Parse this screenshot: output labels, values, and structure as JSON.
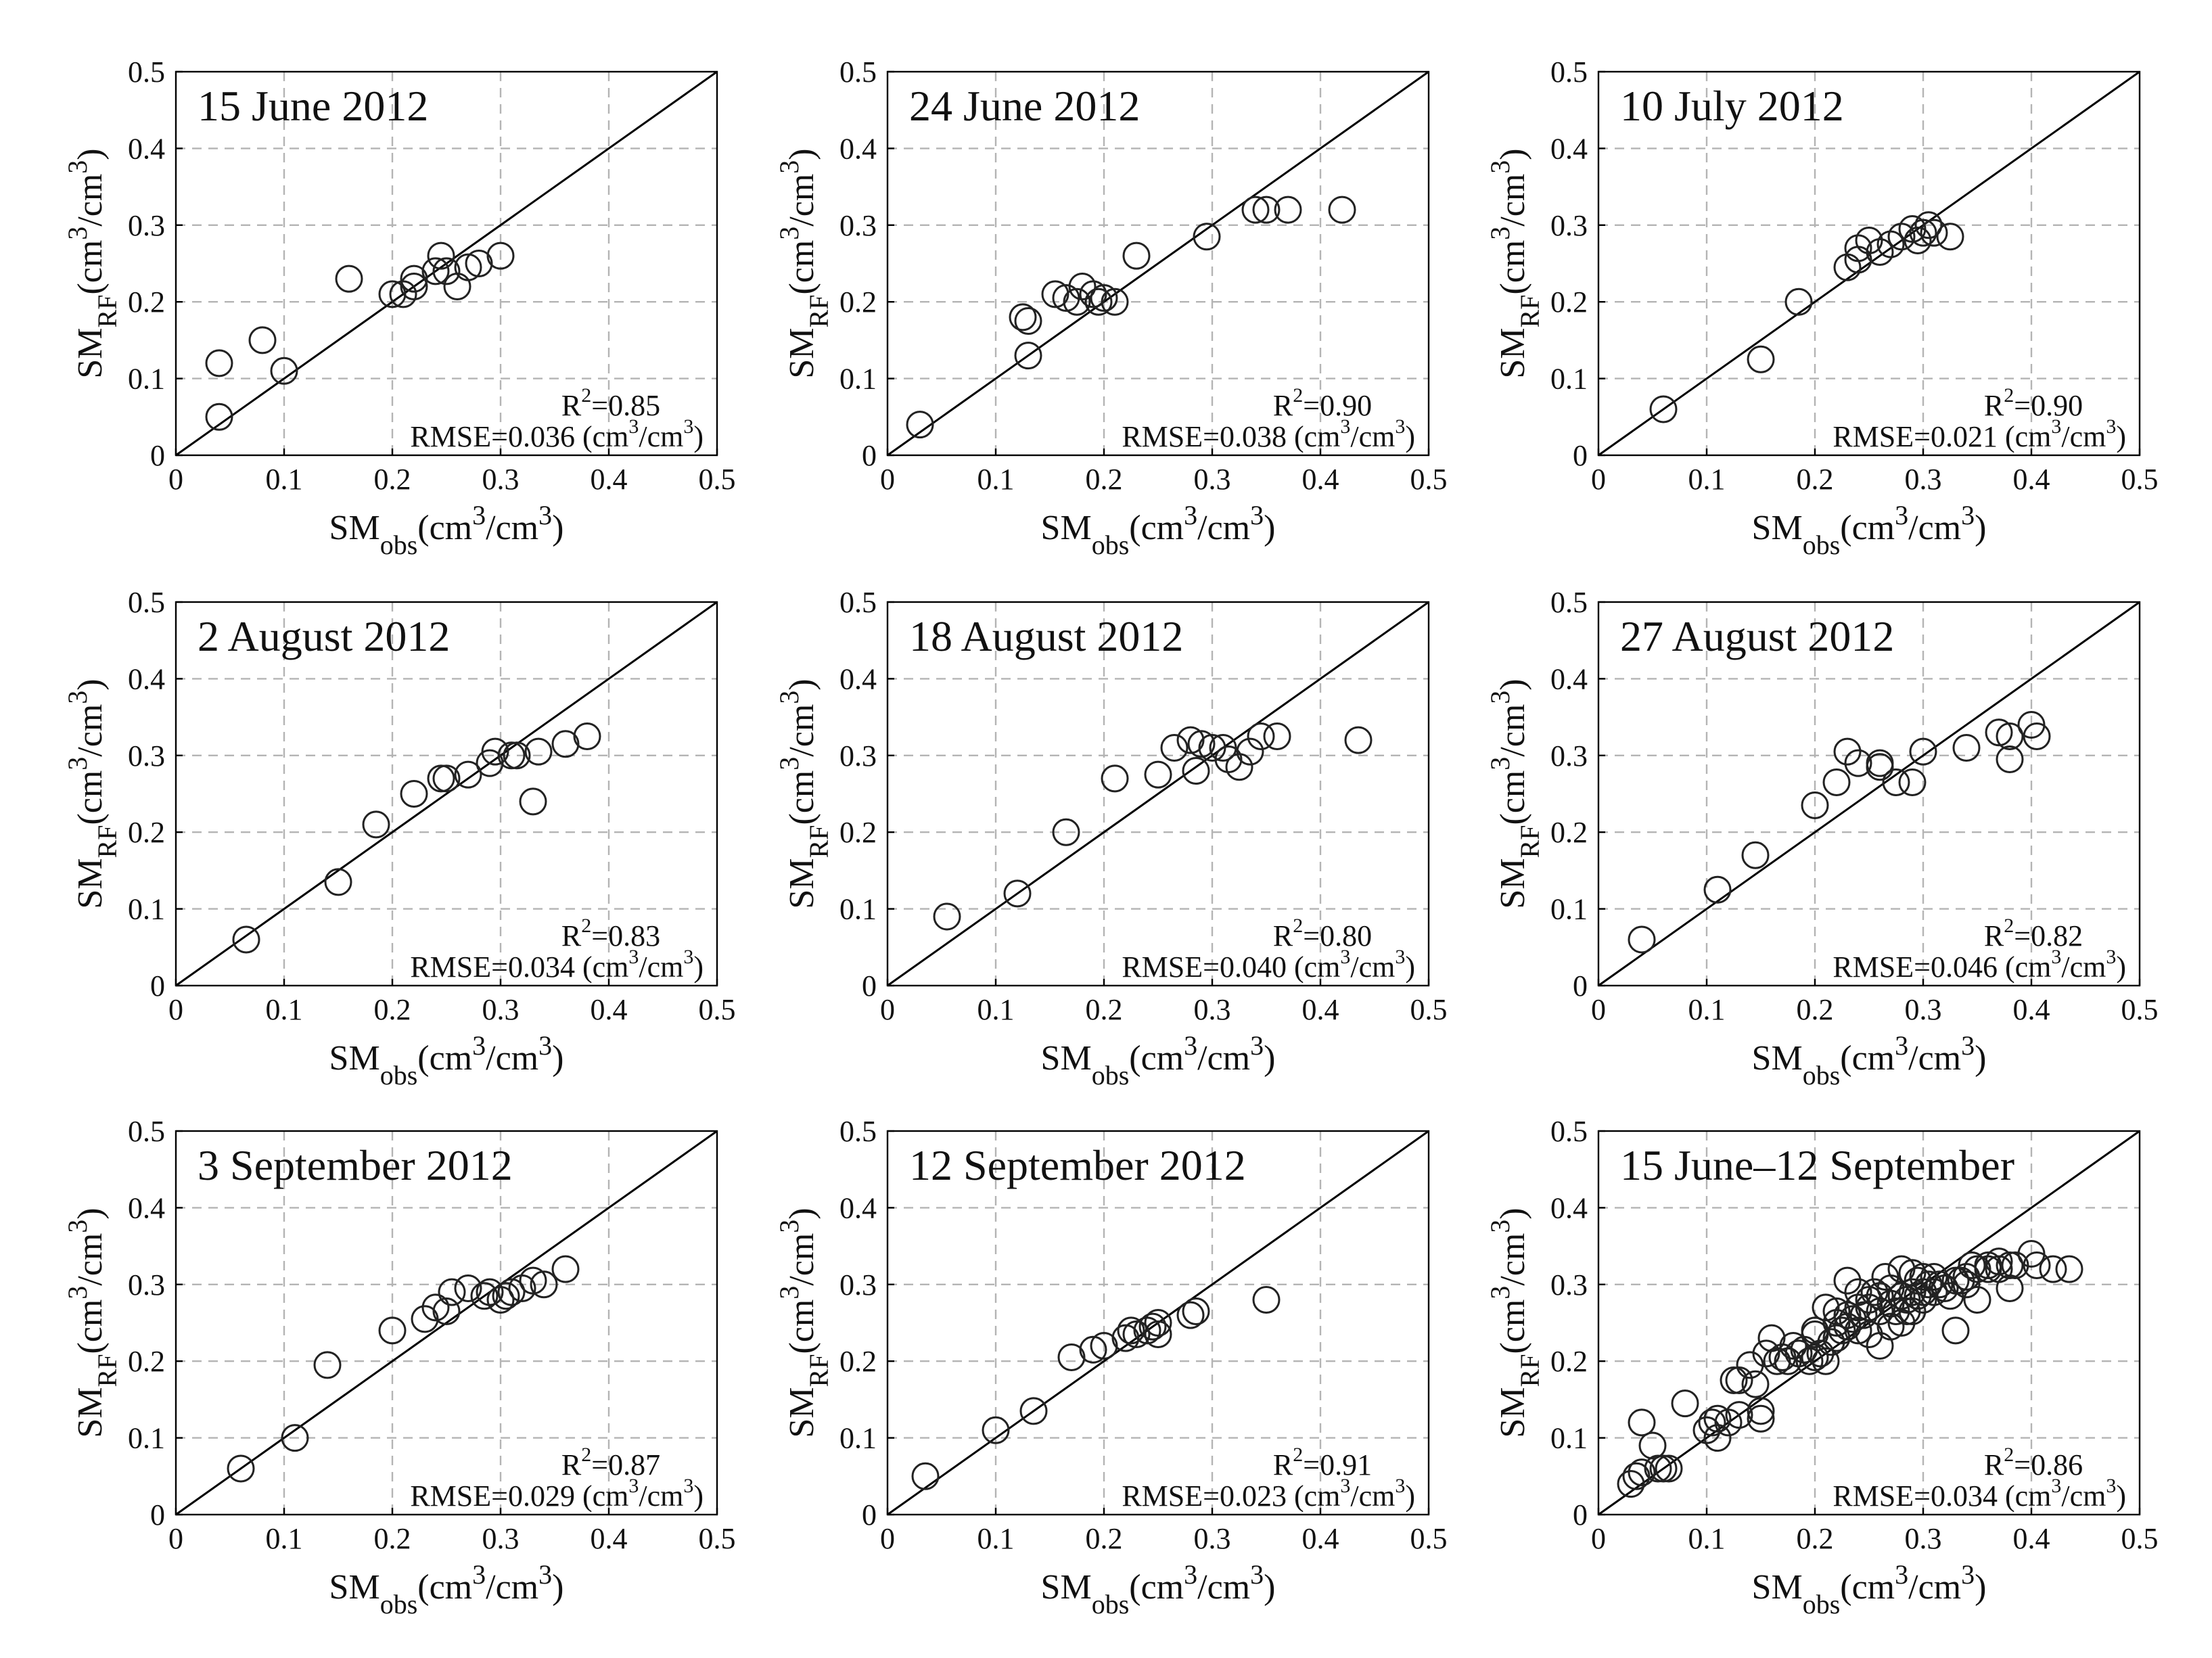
{
  "axis_labels": {
    "x": {
      "base": "SM",
      "sub": "obs",
      "pre": "(cm",
      "sup": "3",
      "post": "/cm",
      "sup2": "3",
      "close": ")"
    },
    "y": {
      "base": "SM",
      "sub": "RF",
      "pre": "(cm",
      "sup": "3",
      "post": "/cm",
      "sup2": "3",
      "close": ")"
    }
  },
  "ticks": [
    "0",
    "0.1",
    "0.2",
    "0.3",
    "0.4",
    "0.5"
  ],
  "chart_data": [
    {
      "type": "scatter",
      "title": "15 June 2012",
      "r2_prefix": "R",
      "r2_sup": "2",
      "r2_value": "=0.85",
      "rmse_prefix": "RMSE=0.036 (cm",
      "rmse_sup1": "3",
      "rmse_mid": "/cm",
      "rmse_sup2": "3",
      "rmse_close": ")",
      "xlim": [
        0,
        0.5
      ],
      "ylim": [
        0,
        0.5
      ],
      "grid": true,
      "reference_line": "1:1",
      "points": [
        [
          0.04,
          0.05
        ],
        [
          0.04,
          0.12
        ],
        [
          0.08,
          0.15
        ],
        [
          0.1,
          0.11
        ],
        [
          0.16,
          0.23
        ],
        [
          0.2,
          0.21
        ],
        [
          0.21,
          0.21
        ],
        [
          0.22,
          0.23
        ],
        [
          0.22,
          0.22
        ],
        [
          0.24,
          0.24
        ],
        [
          0.245,
          0.26
        ],
        [
          0.25,
          0.24
        ],
        [
          0.26,
          0.22
        ],
        [
          0.27,
          0.245
        ],
        [
          0.28,
          0.25
        ],
        [
          0.3,
          0.26
        ]
      ]
    },
    {
      "type": "scatter",
      "title": "24 June 2012",
      "r2_prefix": "R",
      "r2_sup": "2",
      "r2_value": "=0.90",
      "rmse_prefix": "RMSE=0.038 (cm",
      "rmse_sup1": "3",
      "rmse_mid": "/cm",
      "rmse_sup2": "3",
      "rmse_close": ")",
      "xlim": [
        0,
        0.5
      ],
      "ylim": [
        0,
        0.5
      ],
      "grid": true,
      "reference_line": "1:1",
      "points": [
        [
          0.03,
          0.04
        ],
        [
          0.125,
          0.18
        ],
        [
          0.13,
          0.175
        ],
        [
          0.13,
          0.13
        ],
        [
          0.155,
          0.21
        ],
        [
          0.165,
          0.205
        ],
        [
          0.175,
          0.2
        ],
        [
          0.18,
          0.22
        ],
        [
          0.19,
          0.21
        ],
        [
          0.195,
          0.2
        ],
        [
          0.2,
          0.205
        ],
        [
          0.21,
          0.2
        ],
        [
          0.23,
          0.26
        ],
        [
          0.295,
          0.285
        ],
        [
          0.34,
          0.32
        ],
        [
          0.35,
          0.32
        ],
        [
          0.37,
          0.32
        ],
        [
          0.42,
          0.32
        ]
      ]
    },
    {
      "type": "scatter",
      "title": "10 July 2012",
      "r2_prefix": "R",
      "r2_sup": "2",
      "r2_value": "=0.90",
      "rmse_prefix": "RMSE=0.021 (cm",
      "rmse_sup1": "3",
      "rmse_mid": "/cm",
      "rmse_sup2": "3",
      "rmse_close": ")",
      "xlim": [
        0,
        0.5
      ],
      "ylim": [
        0,
        0.5
      ],
      "grid": true,
      "reference_line": "1:1",
      "points": [
        [
          0.06,
          0.06
        ],
        [
          0.15,
          0.125
        ],
        [
          0.185,
          0.2
        ],
        [
          0.23,
          0.245
        ],
        [
          0.24,
          0.27
        ],
        [
          0.24,
          0.255
        ],
        [
          0.25,
          0.28
        ],
        [
          0.26,
          0.265
        ],
        [
          0.27,
          0.275
        ],
        [
          0.28,
          0.285
        ],
        [
          0.29,
          0.295
        ],
        [
          0.295,
          0.28
        ],
        [
          0.3,
          0.29
        ],
        [
          0.305,
          0.3
        ],
        [
          0.31,
          0.29
        ],
        [
          0.325,
          0.285
        ]
      ]
    },
    {
      "type": "scatter",
      "title": "2 August 2012",
      "r2_prefix": "R",
      "r2_sup": "2",
      "r2_value": "=0.83",
      "rmse_prefix": "RMSE=0.034 (cm",
      "rmse_sup1": "3",
      "rmse_mid": "/cm",
      "rmse_sup2": "3",
      "rmse_close": ")",
      "xlim": [
        0,
        0.5
      ],
      "ylim": [
        0,
        0.5
      ],
      "grid": true,
      "reference_line": "1:1",
      "points": [
        [
          0.065,
          0.06
        ],
        [
          0.15,
          0.135
        ],
        [
          0.185,
          0.21
        ],
        [
          0.22,
          0.25
        ],
        [
          0.245,
          0.27
        ],
        [
          0.25,
          0.27
        ],
        [
          0.27,
          0.275
        ],
        [
          0.29,
          0.29
        ],
        [
          0.295,
          0.305
        ],
        [
          0.31,
          0.3
        ],
        [
          0.315,
          0.3
        ],
        [
          0.33,
          0.24
        ],
        [
          0.335,
          0.305
        ],
        [
          0.36,
          0.315
        ],
        [
          0.38,
          0.325
        ]
      ]
    },
    {
      "type": "scatter",
      "title": "18 August 2012",
      "r2_prefix": "R",
      "r2_sup": "2",
      "r2_value": "=0.80",
      "rmse_prefix": "RMSE=0.040 (cm",
      "rmse_sup1": "3",
      "rmse_mid": "/cm",
      "rmse_sup2": "3",
      "rmse_close": ")",
      "xlim": [
        0,
        0.5
      ],
      "ylim": [
        0,
        0.5
      ],
      "grid": true,
      "reference_line": "1:1",
      "points": [
        [
          0.055,
          0.09
        ],
        [
          0.12,
          0.12
        ],
        [
          0.165,
          0.2
        ],
        [
          0.21,
          0.27
        ],
        [
          0.25,
          0.275
        ],
        [
          0.265,
          0.31
        ],
        [
          0.28,
          0.32
        ],
        [
          0.285,
          0.28
        ],
        [
          0.29,
          0.315
        ],
        [
          0.3,
          0.31
        ],
        [
          0.31,
          0.31
        ],
        [
          0.315,
          0.295
        ],
        [
          0.325,
          0.285
        ],
        [
          0.335,
          0.305
        ],
        [
          0.345,
          0.325
        ],
        [
          0.36,
          0.325
        ],
        [
          0.435,
          0.32
        ]
      ]
    },
    {
      "type": "scatter",
      "title": "27 August 2012",
      "r2_prefix": "R",
      "r2_sup": "2",
      "r2_value": "=0.82",
      "rmse_prefix": "RMSE=0.046 (cm",
      "rmse_sup1": "3",
      "rmse_mid": "/cm",
      "rmse_sup2": "3",
      "rmse_close": ")",
      "xlim": [
        0,
        0.5
      ],
      "ylim": [
        0,
        0.5
      ],
      "grid": true,
      "reference_line": "1:1",
      "points": [
        [
          0.04,
          0.06
        ],
        [
          0.11,
          0.125
        ],
        [
          0.145,
          0.17
        ],
        [
          0.2,
          0.235
        ],
        [
          0.22,
          0.265
        ],
        [
          0.23,
          0.305
        ],
        [
          0.24,
          0.29
        ],
        [
          0.26,
          0.29
        ],
        [
          0.26,
          0.285
        ],
        [
          0.275,
          0.265
        ],
        [
          0.29,
          0.265
        ],
        [
          0.3,
          0.305
        ],
        [
          0.34,
          0.31
        ],
        [
          0.37,
          0.33
        ],
        [
          0.38,
          0.325
        ],
        [
          0.38,
          0.295
        ],
        [
          0.4,
          0.34
        ],
        [
          0.405,
          0.325
        ]
      ]
    },
    {
      "type": "scatter",
      "title": "3 September 2012",
      "r2_prefix": "R",
      "r2_sup": "2",
      "r2_value": "=0.87",
      "rmse_prefix": "RMSE=0.029 (cm",
      "rmse_sup1": "3",
      "rmse_mid": "/cm",
      "rmse_sup2": "3",
      "rmse_close": ")",
      "xlim": [
        0,
        0.5
      ],
      "ylim": [
        0,
        0.5
      ],
      "grid": true,
      "reference_line": "1:1",
      "points": [
        [
          0.06,
          0.06
        ],
        [
          0.11,
          0.1
        ],
        [
          0.14,
          0.195
        ],
        [
          0.2,
          0.24
        ],
        [
          0.23,
          0.255
        ],
        [
          0.24,
          0.27
        ],
        [
          0.25,
          0.265
        ],
        [
          0.255,
          0.29
        ],
        [
          0.27,
          0.295
        ],
        [
          0.285,
          0.285
        ],
        [
          0.29,
          0.29
        ],
        [
          0.3,
          0.28
        ],
        [
          0.305,
          0.285
        ],
        [
          0.31,
          0.29
        ],
        [
          0.32,
          0.295
        ],
        [
          0.33,
          0.305
        ],
        [
          0.34,
          0.3
        ],
        [
          0.36,
          0.32
        ]
      ]
    },
    {
      "type": "scatter",
      "title": "12 September 2012",
      "r2_prefix": "R",
      "r2_sup": "2",
      "r2_value": "=0.91",
      "rmse_prefix": "RMSE=0.023 (cm",
      "rmse_sup1": "3",
      "rmse_mid": "/cm",
      "rmse_sup2": "3",
      "rmse_close": ")",
      "xlim": [
        0,
        0.5
      ],
      "ylim": [
        0,
        0.5
      ],
      "grid": true,
      "reference_line": "1:1",
      "points": [
        [
          0.035,
          0.05
        ],
        [
          0.1,
          0.11
        ],
        [
          0.135,
          0.135
        ],
        [
          0.17,
          0.205
        ],
        [
          0.19,
          0.215
        ],
        [
          0.2,
          0.22
        ],
        [
          0.22,
          0.23
        ],
        [
          0.225,
          0.24
        ],
        [
          0.23,
          0.235
        ],
        [
          0.24,
          0.24
        ],
        [
          0.245,
          0.245
        ],
        [
          0.25,
          0.235
        ],
        [
          0.25,
          0.25
        ],
        [
          0.28,
          0.26
        ],
        [
          0.285,
          0.265
        ],
        [
          0.35,
          0.28
        ]
      ]
    },
    {
      "type": "scatter",
      "title": "15 June–12 September",
      "r2_prefix": "R",
      "r2_sup": "2",
      "r2_value": "=0.86",
      "rmse_prefix": "RMSE=0.034 (cm",
      "rmse_sup1": "3",
      "rmse_mid": "/cm",
      "rmse_sup2": "3",
      "rmse_close": ")",
      "xlim": [
        0,
        0.5
      ],
      "ylim": [
        0,
        0.5
      ],
      "grid": true,
      "reference_line": "1:1",
      "points": [
        [
          0.03,
          0.04
        ],
        [
          0.035,
          0.05
        ],
        [
          0.04,
          0.12
        ],
        [
          0.04,
          0.055
        ],
        [
          0.05,
          0.09
        ],
        [
          0.055,
          0.06
        ],
        [
          0.06,
          0.06
        ],
        [
          0.065,
          0.06
        ],
        [
          0.08,
          0.145
        ],
        [
          0.1,
          0.11
        ],
        [
          0.105,
          0.12
        ],
        [
          0.11,
          0.1
        ],
        [
          0.11,
          0.125
        ],
        [
          0.12,
          0.12
        ],
        [
          0.125,
          0.175
        ],
        [
          0.13,
          0.13
        ],
        [
          0.13,
          0.175
        ],
        [
          0.14,
          0.195
        ],
        [
          0.145,
          0.17
        ],
        [
          0.15,
          0.125
        ],
        [
          0.15,
          0.135
        ],
        [
          0.155,
          0.21
        ],
        [
          0.16,
          0.23
        ],
        [
          0.165,
          0.2
        ],
        [
          0.17,
          0.205
        ],
        [
          0.175,
          0.2
        ],
        [
          0.18,
          0.22
        ],
        [
          0.185,
          0.21
        ],
        [
          0.19,
          0.215
        ],
        [
          0.195,
          0.2
        ],
        [
          0.2,
          0.205
        ],
        [
          0.2,
          0.235
        ],
        [
          0.2,
          0.24
        ],
        [
          0.205,
          0.21
        ],
        [
          0.21,
          0.27
        ],
        [
          0.21,
          0.2
        ],
        [
          0.215,
          0.225
        ],
        [
          0.22,
          0.25
        ],
        [
          0.22,
          0.23
        ],
        [
          0.22,
          0.265
        ],
        [
          0.225,
          0.24
        ],
        [
          0.23,
          0.245
        ],
        [
          0.23,
          0.305
        ],
        [
          0.23,
          0.26
        ],
        [
          0.235,
          0.255
        ],
        [
          0.24,
          0.27
        ],
        [
          0.24,
          0.29
        ],
        [
          0.24,
          0.24
        ],
        [
          0.245,
          0.26
        ],
        [
          0.25,
          0.28
        ],
        [
          0.25,
          0.27
        ],
        [
          0.25,
          0.235
        ],
        [
          0.255,
          0.29
        ],
        [
          0.26,
          0.22
        ],
        [
          0.26,
          0.265
        ],
        [
          0.26,
          0.285
        ],
        [
          0.265,
          0.31
        ],
        [
          0.27,
          0.275
        ],
        [
          0.27,
          0.295
        ],
        [
          0.27,
          0.245
        ],
        [
          0.275,
          0.265
        ],
        [
          0.28,
          0.285
        ],
        [
          0.28,
          0.32
        ],
        [
          0.28,
          0.25
        ],
        [
          0.285,
          0.28
        ],
        [
          0.285,
          0.265
        ],
        [
          0.29,
          0.29
        ],
        [
          0.29,
          0.315
        ],
        [
          0.29,
          0.265
        ],
        [
          0.295,
          0.285
        ],
        [
          0.295,
          0.305
        ],
        [
          0.3,
          0.29
        ],
        [
          0.3,
          0.31
        ],
        [
          0.3,
          0.28
        ],
        [
          0.305,
          0.3
        ],
        [
          0.31,
          0.29
        ],
        [
          0.31,
          0.31
        ],
        [
          0.315,
          0.3
        ],
        [
          0.32,
          0.295
        ],
        [
          0.325,
          0.285
        ],
        [
          0.33,
          0.24
        ],
        [
          0.33,
          0.305
        ],
        [
          0.335,
          0.305
        ],
        [
          0.34,
          0.31
        ],
        [
          0.34,
          0.3
        ],
        [
          0.345,
          0.325
        ],
        [
          0.35,
          0.32
        ],
        [
          0.35,
          0.28
        ],
        [
          0.36,
          0.32
        ],
        [
          0.36,
          0.325
        ],
        [
          0.37,
          0.33
        ],
        [
          0.37,
          0.32
        ],
        [
          0.38,
          0.325
        ],
        [
          0.38,
          0.295
        ],
        [
          0.385,
          0.325
        ],
        [
          0.4,
          0.34
        ],
        [
          0.405,
          0.325
        ],
        [
          0.42,
          0.32
        ],
        [
          0.435,
          0.32
        ]
      ]
    }
  ]
}
